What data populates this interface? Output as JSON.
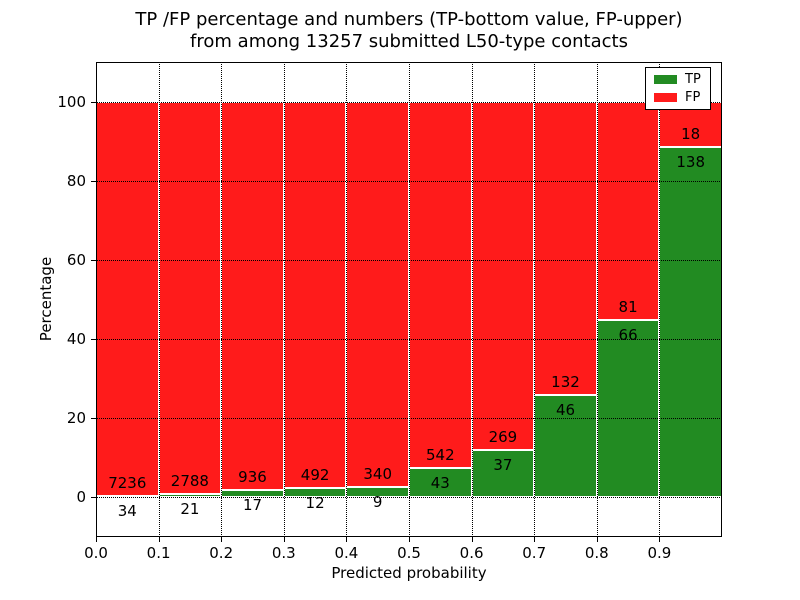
{
  "title": {
    "line1": "TP /FP percentage and numbers (TP-bottom value, FP-upper)",
    "line2": "from among 13257 submitted L50-type contacts"
  },
  "axes": {
    "xlabel": "Predicted probability",
    "ylabel": "Percentage",
    "x_tick_labels": [
      "0.0",
      "0.1",
      "0.2",
      "0.3",
      "0.4",
      "0.5",
      "0.6",
      "0.7",
      "0.8",
      "0.9"
    ],
    "x_tick_values": [
      0.0,
      0.1,
      0.2,
      0.3,
      0.4,
      0.5,
      0.6,
      0.7,
      0.8,
      0.9
    ],
    "y_tick_labels": [
      "0",
      "20",
      "40",
      "60",
      "80",
      "100"
    ],
    "y_tick_values": [
      0,
      20,
      40,
      60,
      80,
      100
    ],
    "xlim": [
      0,
      1
    ],
    "ylim": [
      -10,
      110
    ],
    "grid_style": "dotted"
  },
  "legend": {
    "position": "upper right",
    "entries": [
      {
        "label": "TP",
        "color": "#228B22"
      },
      {
        "label": "FP",
        "color": "#FF1B1B"
      }
    ]
  },
  "chart_data": {
    "type": "bar",
    "stacked": true,
    "normalization": "each bin stacked to 100 percent",
    "title": "TP /FP percentage and numbers (TP-bottom value, FP-upper) from among 13257 submitted L50-type contacts",
    "xlabel": "Predicted probability",
    "ylabel": "Percentage",
    "total_contacts": 13257,
    "bin_edges": [
      0.0,
      0.1,
      0.2,
      0.3,
      0.4,
      0.5,
      0.6,
      0.7,
      0.8,
      0.9,
      1.0
    ],
    "categories": [
      "0.0-0.1",
      "0.1-0.2",
      "0.2-0.3",
      "0.3-0.4",
      "0.4-0.5",
      "0.5-0.6",
      "0.6-0.7",
      "0.7-0.8",
      "0.8-0.9",
      "0.9-1.0"
    ],
    "series": [
      {
        "name": "TP",
        "color": "#228B22",
        "counts": [
          34,
          21,
          17,
          12,
          9,
          43,
          37,
          46,
          66,
          138
        ]
      },
      {
        "name": "FP",
        "color": "#FF1B1B",
        "counts": [
          7236,
          2788,
          936,
          492,
          340,
          542,
          269,
          132,
          81,
          18
        ]
      }
    ],
    "xlim": [
      0,
      1
    ],
    "ylim": [
      -10,
      110
    ],
    "legend_position": "upper right",
    "grid": true
  }
}
